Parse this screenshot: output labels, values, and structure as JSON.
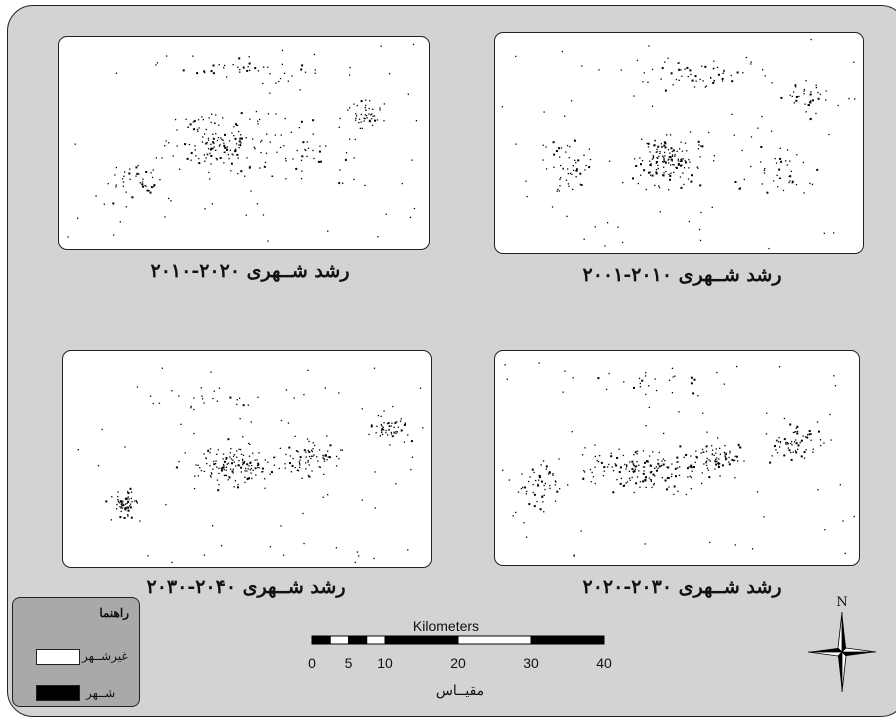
{
  "maps": [
    {
      "id": "p1",
      "caption": "رشد شــهری ۲۰۲۰-۲۰۱۰"
    },
    {
      "id": "p2",
      "caption": "رشد شــهری ۲۰۱۰-۲۰۰۱"
    },
    {
      "id": "p3",
      "caption": "رشد شــهری ۲۰۴۰-۲۰۳۰"
    },
    {
      "id": "p4",
      "caption": "رشد شــهری ۲۰۳۰-۲۰۲۰"
    }
  ],
  "legend": {
    "title": "راهنما",
    "items": [
      {
        "label": "غیرشــهر",
        "color": "#ffffff"
      },
      {
        "label": "شــهر",
        "color": "#000000"
      }
    ]
  },
  "scale_bar": {
    "unit_label": "Kilometers",
    "ticks": [
      "0",
      "5",
      "10",
      "20",
      "30",
      "40"
    ],
    "tick_values": [
      0,
      5,
      10,
      20,
      30,
      40
    ],
    "caption": "مقیــاس"
  },
  "north_arrow": {
    "label": "N"
  },
  "colors": {
    "frame_bg": "#d3d3d3",
    "legend_bg": "#a9a9a9",
    "urban": "#000000",
    "non_urban": "#ffffff"
  }
}
